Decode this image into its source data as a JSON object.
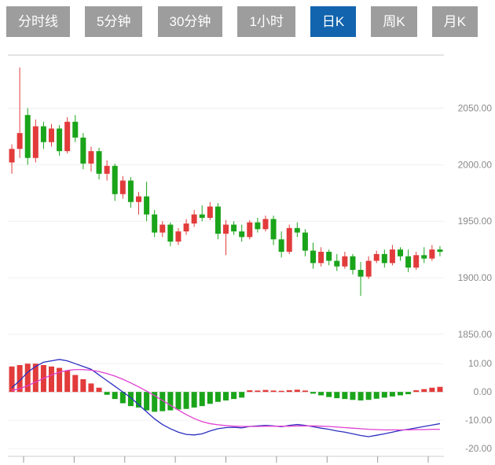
{
  "tabs": {
    "items": [
      {
        "name": "tab-time-line",
        "label": "分时线",
        "active": false
      },
      {
        "name": "tab-5min",
        "label": "5分钟",
        "active": false
      },
      {
        "name": "tab-30min",
        "label": "30分钟",
        "active": false
      },
      {
        "name": "tab-1hour",
        "label": "1小时",
        "active": false
      },
      {
        "name": "tab-day-k",
        "label": "日K",
        "active": true
      },
      {
        "name": "tab-week-k",
        "label": "周K",
        "active": false
      },
      {
        "name": "tab-month-k",
        "label": "月K",
        "active": false
      }
    ]
  },
  "colors": {
    "up": "#e23b3b",
    "down": "#1aa41a",
    "diff_line": "#2b2fc0",
    "dea_line": "#e03fd0",
    "tab_bg": "#9d9d9d",
    "tab_active_bg": "#1164ad",
    "axis_text": "#8a8a8a",
    "grid": "#efefef",
    "panel_border": "#c8c8c8"
  },
  "chart_data": {
    "type": "candlestick",
    "title": "",
    "candle_format": [
      "open",
      "high",
      "low",
      "close"
    ],
    "panels": [
      {
        "name": "price",
        "ylim": [
          1836,
          2097
        ],
        "yticks": [
          2050,
          2000,
          1950,
          1900,
          1850
        ],
        "ytick_labels": [
          "2050.00",
          "2000.00",
          "1950.00",
          "1900.00",
          "1850.00"
        ]
      },
      {
        "name": "macd",
        "ylim": [
          -22.2,
          12
        ],
        "yticks": [
          10,
          0,
          -10,
          -20
        ],
        "ytick_labels": [
          "10.00",
          "0.00",
          "-10.00",
          "-20.00"
        ]
      }
    ],
    "xticks_count": 9,
    "candles": [
      [
        2002,
        2018,
        1992,
        2014
      ],
      [
        2014,
        2086,
        2006,
        2028
      ],
      [
        2044,
        2050,
        2000,
        2006
      ],
      [
        2006,
        2040,
        2002,
        2034
      ],
      [
        2034,
        2038,
        2014,
        2020
      ],
      [
        2020,
        2036,
        2016,
        2032
      ],
      [
        2032,
        2035,
        2008,
        2012
      ],
      [
        2012,
        2042,
        2010,
        2038
      ],
      [
        2038,
        2044,
        2020,
        2024
      ],
      [
        2024,
        2028,
        1996,
        2001
      ],
      [
        2001,
        2016,
        1994,
        2012
      ],
      [
        2012,
        2015,
        1987,
        1992
      ],
      [
        1992,
        2004,
        1986,
        1999
      ],
      [
        1999,
        2001,
        1968,
        1974
      ],
      [
        1974,
        1990,
        1970,
        1986
      ],
      [
        1986,
        1989,
        1962,
        1967
      ],
      [
        1967,
        1976,
        1956,
        1972
      ],
      [
        1972,
        1985,
        1950,
        1956
      ],
      [
        1956,
        1960,
        1936,
        1940
      ],
      [
        1940,
        1950,
        1936,
        1947
      ],
      [
        1947,
        1949,
        1928,
        1932
      ],
      [
        1932,
        1944,
        1929,
        1941
      ],
      [
        1941,
        1952,
        1938,
        1948
      ],
      [
        1948,
        1960,
        1945,
        1956
      ],
      [
        1956,
        1964,
        1950,
        1953
      ],
      [
        1953,
        1967,
        1951,
        1963
      ],
      [
        1963,
        1966,
        1934,
        1939
      ],
      [
        1939,
        1951,
        1920,
        1947
      ],
      [
        1947,
        1950,
        1938,
        1941
      ],
      [
        1941,
        1947,
        1932,
        1936
      ],
      [
        1936,
        1951,
        1934,
        1949
      ],
      [
        1949,
        1953,
        1940,
        1943
      ],
      [
        1943,
        1955,
        1941,
        1952
      ],
      [
        1952,
        1955,
        1929,
        1934
      ],
      [
        1934,
        1941,
        1918,
        1923
      ],
      [
        1923,
        1947,
        1921,
        1944
      ],
      [
        1944,
        1949,
        1936,
        1940
      ],
      [
        1940,
        1943,
        1919,
        1924
      ],
      [
        1924,
        1931,
        1908,
        1913
      ],
      [
        1913,
        1927,
        1910,
        1923
      ],
      [
        1923,
        1925,
        1911,
        1915
      ],
      [
        1915,
        1921,
        1906,
        1910
      ],
      [
        1910,
        1923,
        1908,
        1919
      ],
      [
        1919,
        1921,
        1903,
        1907
      ],
      [
        1907,
        1914,
        1884,
        1901
      ],
      [
        1901,
        1919,
        1899,
        1915
      ],
      [
        1915,
        1924,
        1913,
        1921
      ],
      [
        1921,
        1925,
        1909,
        1913
      ],
      [
        1913,
        1929,
        1911,
        1925
      ],
      [
        1925,
        1927,
        1915,
        1919
      ],
      [
        1919,
        1925,
        1905,
        1909
      ],
      [
        1909,
        1923,
        1907,
        1920
      ],
      [
        1920,
        1927,
        1913,
        1917
      ],
      [
        1917,
        1929,
        1915,
        1925
      ],
      [
        1925,
        1928,
        1919,
        1923
      ]
    ],
    "macd": {
      "hist": [
        9,
        9.5,
        10,
        10,
        9.5,
        9,
        8.5,
        7.5,
        6,
        4.5,
        3,
        1.5,
        -1,
        -2.5,
        -4,
        -5,
        -5.5,
        -6.5,
        -7,
        -6.8,
        -6.5,
        -6.2,
        -6,
        -5.5,
        -5,
        -4.2,
        -3.5,
        -3,
        -2.5,
        -2,
        0.6,
        0.5,
        0.7,
        0.5,
        0.4,
        0.6,
        0.8,
        0.5,
        -0.6,
        -1.2,
        -1.8,
        -2.2,
        -2.5,
        -2.8,
        -3,
        -2.8,
        -2.4,
        -2,
        -1.6,
        -1.2,
        -0.8,
        0.6,
        1,
        1.5,
        1.8
      ],
      "diff": [
        1.5,
        4,
        7,
        9,
        10.5,
        11,
        11.5,
        11,
        10,
        9,
        8,
        6,
        4,
        2,
        0,
        -2,
        -4.5,
        -7,
        -9.5,
        -11.5,
        -13,
        -14.2,
        -15,
        -15.2,
        -14.8,
        -13.8,
        -13,
        -12.6,
        -12.5,
        -12.7,
        -12.2,
        -12,
        -11.8,
        -12,
        -12.3,
        -11.8,
        -11.5,
        -11.8,
        -12.3,
        -12.8,
        -13.2,
        -13.8,
        -14.2,
        -14.8,
        -15.4,
        -15.8,
        -15.3,
        -14.8,
        -14.2,
        -13.6,
        -13.2,
        -12.7,
        -12.2,
        -11.7,
        -11.2
      ],
      "dea": [
        0.5,
        1.2,
        2.2,
        3.5,
        4.8,
        6,
        7,
        7.6,
        7.9,
        7.9,
        7.7,
        7.2,
        6.5,
        5.6,
        4.5,
        3.2,
        1.8,
        0.3,
        -1.3,
        -3,
        -4.7,
        -6.4,
        -8,
        -9.4,
        -10.5,
        -11.2,
        -11.6,
        -11.9,
        -12.1,
        -12.2,
        -12.2,
        -12.2,
        -12.1,
        -12.1,
        -12.1,
        -12.1,
        -12,
        -12,
        -12,
        -12.1,
        -12.2,
        -12.4,
        -12.6,
        -12.8,
        -13,
        -13.2,
        -13.3,
        -13.4,
        -13.4,
        -13.4,
        -13.4,
        -13.3,
        -13.3,
        -13.2,
        -13.2
      ]
    }
  }
}
